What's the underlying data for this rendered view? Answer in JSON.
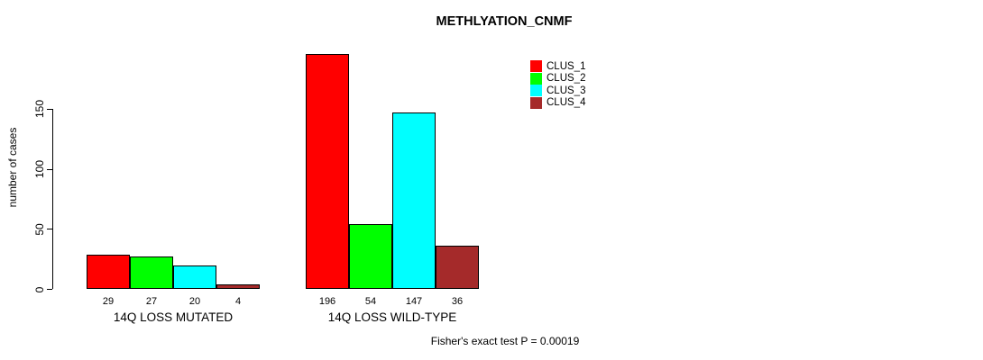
{
  "title": "METHLYATION_CNMF",
  "footer": "Fisher's exact test P = 0.00019",
  "chart_data": {
    "type": "bar",
    "title": "METHLYATION_CNMF",
    "xlabel": "",
    "ylabel": "number of cases",
    "yticks": [
      0,
      50,
      100,
      150
    ],
    "ylim": [
      0,
      200
    ],
    "grid": false,
    "legend_position": "top-right",
    "categories": [
      "14Q LOSS MUTATED",
      "14Q LOSS WILD-TYPE"
    ],
    "series": [
      {
        "name": "CLUS_1",
        "color": "#FF0000",
        "values": [
          29,
          196
        ]
      },
      {
        "name": "CLUS_2",
        "color": "#00FF00",
        "values": [
          27,
          54
        ]
      },
      {
        "name": "CLUS_3",
        "color": "#00FFFF",
        "values": [
          20,
          147
        ]
      },
      {
        "name": "CLUS_4",
        "color": "#A52A2A",
        "values": [
          4,
          36
        ]
      }
    ],
    "bar_labels": [
      [
        "29",
        "27",
        "20",
        "4"
      ],
      [
        "196",
        "54",
        "147",
        "36"
      ]
    ],
    "annotation": "Fisher's exact test P = 0.00019"
  }
}
